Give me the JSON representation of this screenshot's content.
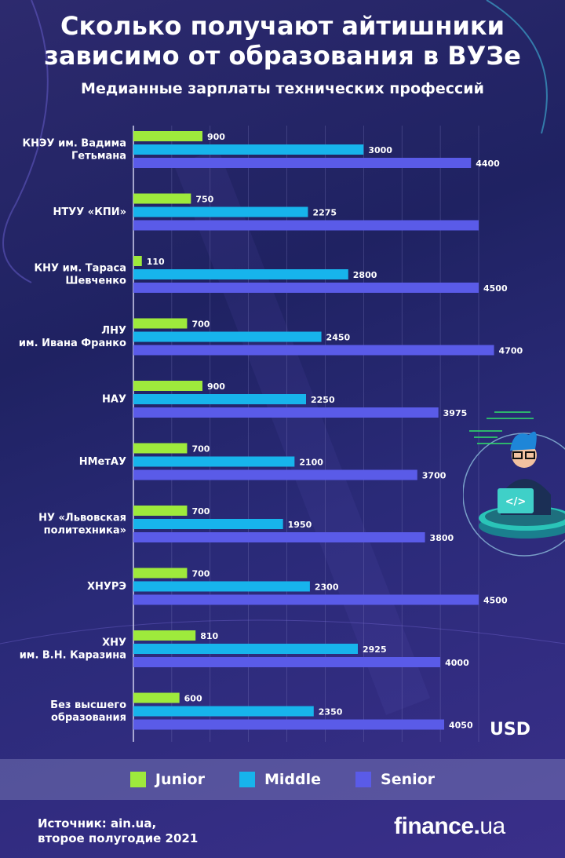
{
  "header": {
    "title_line1": "Сколько получают айтишники",
    "title_line2": "зависимо от образования в ВУЗе",
    "subtitle": "Медианные зарплаты технических профессий"
  },
  "unit_label": "USD",
  "legend": {
    "junior": "Junior",
    "middle": "Middle",
    "senior": "Senior"
  },
  "colors": {
    "junior": "#9eea3c",
    "middle": "#17b4ec",
    "senior": "#5a5be8"
  },
  "source": {
    "line1": "Источник: ain.ua,",
    "line2": "второе полугодие 2021"
  },
  "logo": {
    "text_main": "finance",
    "text_dot": ".",
    "text_tld": "ua"
  },
  "illustration": {
    "icon": "programmer-laptop-icon"
  },
  "chart_data": {
    "type": "bar",
    "orientation": "horizontal",
    "xlim": [
      0,
      4800
    ],
    "grid": true,
    "legend_position": "bottom",
    "categories": [
      [
        "КНЭУ им. Вадима",
        "Гетьмана"
      ],
      [
        "НТУУ «КПИ»"
      ],
      [
        "КНУ им. Тараса",
        "Шевченко"
      ],
      [
        "ЛНУ",
        "им. Ивана Франко"
      ],
      [
        "НАУ"
      ],
      [
        "НМетАУ"
      ],
      [
        "НУ «Львовская",
        "политехника»"
      ],
      [
        "ХНУРЭ"
      ],
      [
        "ХНУ",
        "им. В.Н. Каразина"
      ],
      [
        "Без высшего",
        "образования"
      ]
    ],
    "series": [
      {
        "name": "Junior",
        "values": [
          900,
          750,
          110,
          700,
          900,
          700,
          700,
          700,
          810,
          600
        ],
        "labels": [
          "900",
          "750",
          "110",
          "700",
          "900",
          "700",
          "700",
          "700",
          "810",
          "600"
        ]
      },
      {
        "name": "Middle",
        "values": [
          3000,
          2275,
          2800,
          2450,
          2250,
          2100,
          1950,
          2300,
          2925,
          2350
        ],
        "labels": [
          "3000",
          "2275",
          "2800",
          "2450",
          "2250",
          "2100",
          "1950",
          "2300",
          "2925",
          "2350"
        ]
      },
      {
        "name": "Senior",
        "values": [
          4400,
          4500,
          4500,
          4700,
          3975,
          3700,
          3800,
          4500,
          4000,
          4050
        ],
        "labels": [
          "4400",
          "",
          "4500",
          "4700",
          "3975",
          "3700",
          "3800",
          "4500",
          "4000",
          "4050"
        ]
      }
    ]
  }
}
